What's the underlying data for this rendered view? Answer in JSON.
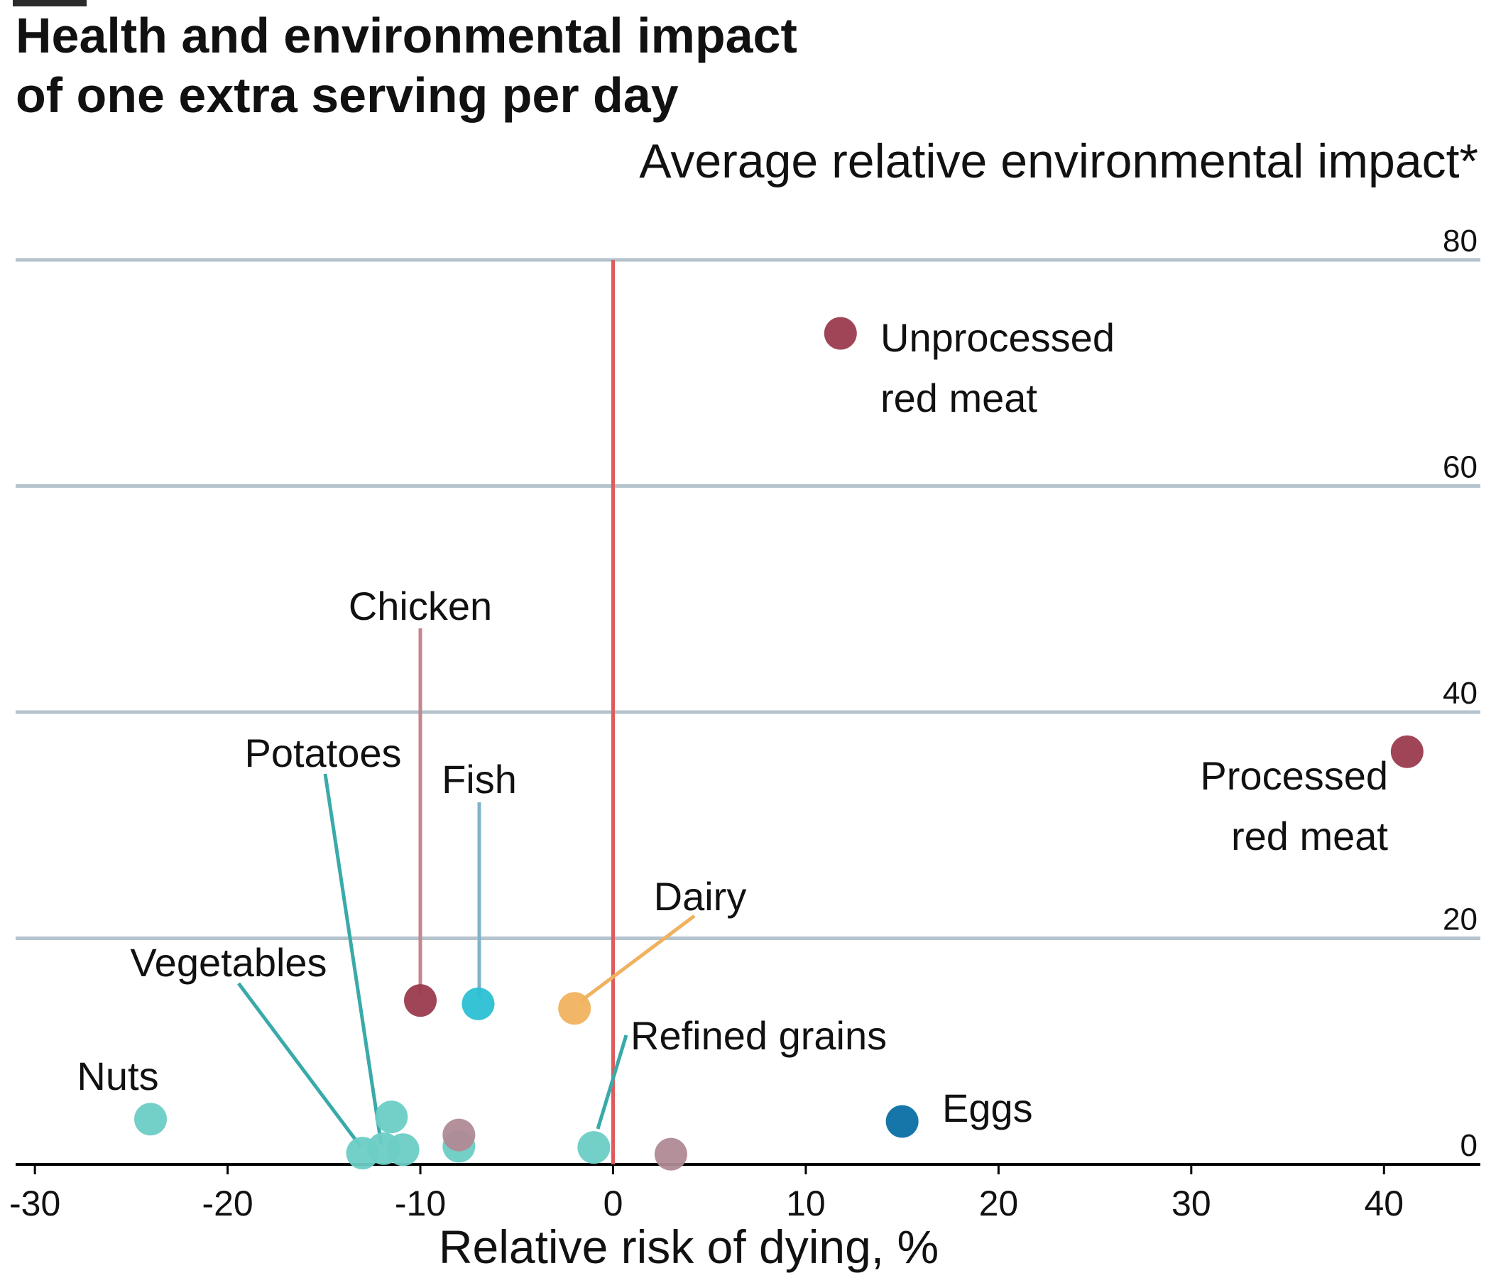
{
  "chart_data": {
    "type": "scatter",
    "title": "Health and environmental impact",
    "subtitle": "of one extra serving per day",
    "xlabel": "Relative risk of dying, %",
    "ylabel": "Average relative environmental impact*",
    "xlim": [
      -31,
      45
    ],
    "ylim": [
      0,
      80
    ],
    "xticks": [
      -30,
      -20,
      -10,
      0,
      10,
      20,
      30,
      40
    ],
    "yticks": [
      0,
      20,
      40,
      60,
      80
    ],
    "grid": "horizontal",
    "reference_line_x": 0,
    "points": [
      {
        "label": "Unprocessed red meat",
        "x": 11.8,
        "y": 73.5,
        "color": "#9b3b4e"
      },
      {
        "label": "Processed red meat",
        "x": 41.2,
        "y": 36.5,
        "color": "#9b3b4e"
      },
      {
        "label": "Chicken",
        "x": -10,
        "y": 14.5,
        "color": "#9b3b4e"
      },
      {
        "label": "Fish",
        "x": -7,
        "y": 14.2,
        "color": "#2bc0d4"
      },
      {
        "label": "Dairy",
        "x": -2,
        "y": 13.8,
        "color": "#f0b25e"
      },
      {
        "label": "Eggs",
        "x": 15,
        "y": 3.8,
        "color": "#0b6fa4"
      },
      {
        "label": "Refined grains",
        "x": -1,
        "y": 1.5,
        "color": "#6ccdc5"
      },
      {
        "label": "Nuts",
        "x": -24,
        "y": 4,
        "color": "#6ccdc5"
      },
      {
        "label": "Vegetables",
        "x": -13,
        "y": 1,
        "color": "#6ccdc5"
      },
      {
        "label": "Potatoes",
        "x": -11.9,
        "y": 1.4,
        "color": "#6ccdc5"
      },
      {
        "label": "",
        "x": -11.5,
        "y": 4.2,
        "color": "#6ccdc5"
      },
      {
        "label": "",
        "x": -10.9,
        "y": 1.3,
        "color": "#6ccdc5"
      },
      {
        "label": "",
        "x": -8,
        "y": 1.6,
        "color": "#6ccdc5"
      },
      {
        "label": "",
        "x": -8,
        "y": 2.6,
        "color": "#b08a96"
      },
      {
        "label": "",
        "x": 3,
        "y": 0.9,
        "color": "#b08a96"
      }
    ]
  },
  "colors": {
    "grid": "#b4c3cd",
    "reference_line": "#e05a5c",
    "axis": "#000000"
  }
}
